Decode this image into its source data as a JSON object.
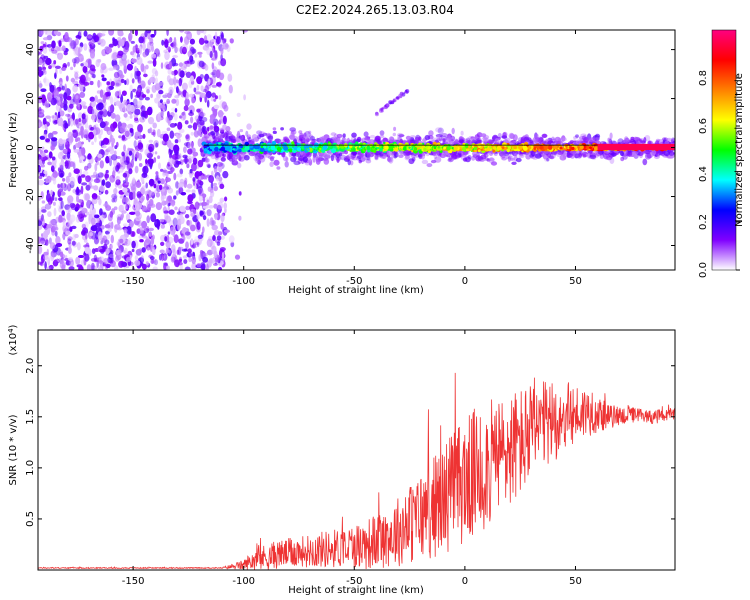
{
  "title": "C2E2.2024.265.13.03.R04",
  "chart_data": [
    {
      "type": "heatmap",
      "name": "spectrogram",
      "xlabel": "Height of straight line (km)",
      "ylabel": "Frequency (Hz)",
      "xlim": [
        -193,
        95
      ],
      "ylim": [
        -50,
        48
      ],
      "xticks": [
        -150,
        -100,
        -50,
        0,
        50
      ],
      "yticks": [
        -40,
        -20,
        0,
        20,
        40
      ],
      "xtick_labels": [
        "-150",
        "-100",
        "-50",
        "0",
        "50"
      ],
      "ytick_labels": [
        "-40",
        "-20",
        "0",
        "20",
        "40"
      ],
      "noise_region_x": [
        -193,
        -108
      ],
      "signal_band_x": [
        -118,
        95
      ],
      "signal_band_center_hz": 0,
      "tone_line_x": [
        -118,
        95
      ],
      "tone_line_hz": 1,
      "harmonic_feature": {
        "x": [
          -40,
          -26
        ],
        "hz": [
          14,
          23
        ]
      },
      "colorbar": {
        "label": "Normalized spectral amplitude",
        "range": [
          0,
          1
        ],
        "ticks": [
          0.0,
          0.2,
          0.4,
          0.6,
          0.8
        ],
        "tick_labels": [
          "0.0",
          "0.2",
          "0.4",
          "0.6",
          "0.8"
        ],
        "colors": [
          "#ffffff",
          "#8000ff",
          "#0000ff",
          "#00ffff",
          "#00ff00",
          "#ffff00",
          "#ff8000",
          "#ff0000",
          "#ff0080"
        ]
      }
    },
    {
      "type": "line",
      "name": "snr",
      "xlabel": "Height of straight line (km)",
      "ylabel": "SNR (10 * v/v)",
      "y_multiplier_label": "(x10",
      "y_multiplier_exp": "4",
      "y_multiplier_close": ")",
      "xlim": [
        -193,
        95
      ],
      "ylim": [
        0,
        2.35
      ],
      "xticks": [
        -150,
        -100,
        -50,
        0,
        50
      ],
      "yticks": [
        0.5,
        1.0,
        1.5,
        2.0
      ],
      "xtick_labels": [
        "-150",
        "-100",
        "-50",
        "0",
        "50"
      ],
      "ytick_labels": [
        "0.5",
        "1.0",
        "1.5",
        "2.0"
      ],
      "color": "#ee3333",
      "envelope": {
        "x": [
          -193,
          -110,
          -100,
          -95,
          -85,
          -75,
          -65,
          -55,
          -45,
          -35,
          -25,
          -15,
          -5,
          5,
          15,
          25,
          35,
          45,
          55,
          65,
          75,
          85,
          95
        ],
        "mean": [
          0.02,
          0.02,
          0.05,
          0.1,
          0.15,
          0.18,
          0.2,
          0.22,
          0.25,
          0.32,
          0.45,
          0.6,
          0.8,
          0.95,
          1.1,
          1.25,
          1.4,
          1.5,
          1.55,
          1.5,
          1.52,
          1.5,
          1.52
        ],
        "spread": [
          0.005,
          0.005,
          0.05,
          0.12,
          0.14,
          0.15,
          0.18,
          0.2,
          0.25,
          0.3,
          0.4,
          0.5,
          0.6,
          0.65,
          0.6,
          0.55,
          0.45,
          0.35,
          0.25,
          0.12,
          0.08,
          0.07,
          0.06
        ]
      }
    }
  ]
}
